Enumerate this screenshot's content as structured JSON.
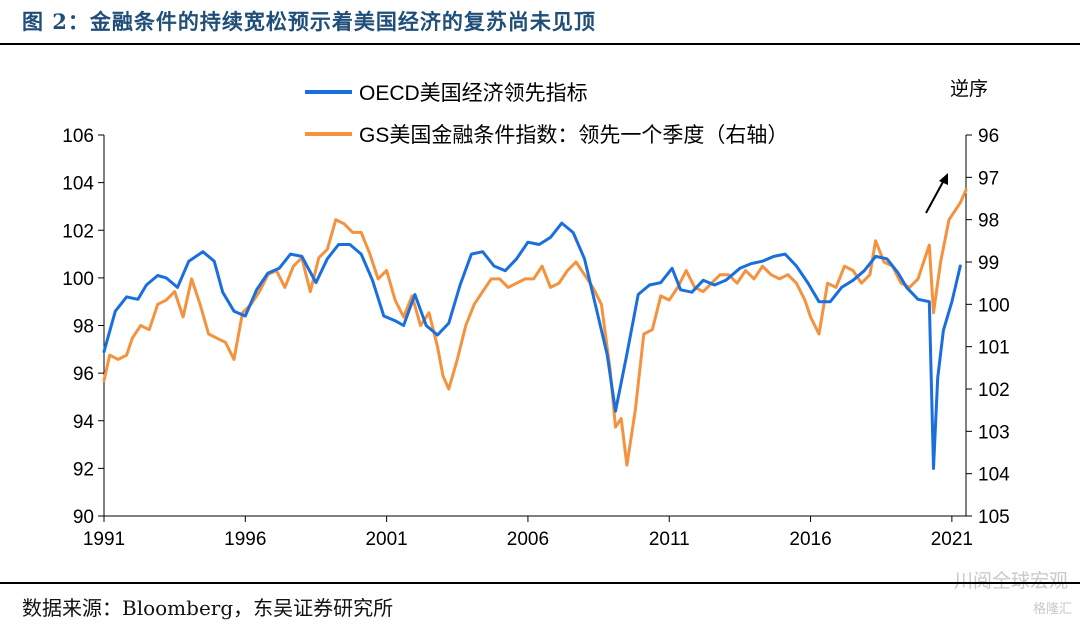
{
  "header": {
    "title": "图 2：金融条件的持续宽松预示着美国经济的复苏尚未见顶"
  },
  "footer": {
    "source": "数据来源：Bloomberg，东吴证券研究所"
  },
  "watermark": {
    "main": "川阅全球宏观",
    "sub": "格隆汇"
  },
  "colors": {
    "oecd": "#1a6fdf",
    "gs": "#f5923e",
    "title": "#1f4e79",
    "axis": "#000000"
  },
  "chart_data": {
    "type": "line",
    "title": "",
    "xlabel": "",
    "x_ticks": [
      "1991",
      "1996",
      "2001",
      "2006",
      "2011",
      "2016",
      "2021"
    ],
    "xlim": [
      1991.0,
      2021.5
    ],
    "left_axis": {
      "ylim": [
        90,
        106
      ],
      "ticks": [
        "90",
        "92",
        "94",
        "96",
        "98",
        "100",
        "102",
        "104",
        "106"
      ]
    },
    "right_axis": {
      "label": "逆序",
      "inverted": true,
      "ylim": [
        96,
        105
      ],
      "ticks": [
        "96",
        "97",
        "98",
        "99",
        "100",
        "101",
        "102",
        "103",
        "104",
        "105"
      ]
    },
    "legend": {
      "placement": "top-center"
    },
    "annotation": "arrow pointing up-right near the end of the series",
    "series": [
      {
        "name": "OECD美国经济领先指标",
        "axis": "left",
        "color": "#1a6fdf",
        "x": [
          1991.0,
          1991.4,
          1991.8,
          1992.2,
          1992.5,
          1992.9,
          1993.2,
          1993.6,
          1994.0,
          1994.5,
          1994.9,
          1995.2,
          1995.6,
          1996.0,
          1996.4,
          1996.8,
          1997.2,
          1997.6,
          1998.0,
          1998.5,
          1998.9,
          1999.3,
          1999.7,
          2000.1,
          2000.5,
          2000.9,
          2001.3,
          2001.6,
          2002.0,
          2002.4,
          2002.8,
          2003.2,
          2003.6,
          2004.0,
          2004.4,
          2004.8,
          2005.2,
          2005.6,
          2006.0,
          2006.4,
          2006.8,
          2007.2,
          2007.6,
          2008.0,
          2008.4,
          2008.8,
          2009.1,
          2009.5,
          2009.9,
          2010.3,
          2010.7,
          2011.1,
          2011.4,
          2011.8,
          2012.2,
          2012.6,
          2013.0,
          2013.5,
          2013.9,
          2014.3,
          2014.7,
          2015.1,
          2015.5,
          2015.9,
          2016.3,
          2016.7,
          2017.1,
          2017.5,
          2017.9,
          2018.3,
          2018.7,
          2019.1,
          2019.4,
          2019.8,
          2020.2,
          2020.35,
          2020.5,
          2020.7,
          2021.0,
          2021.3
        ],
        "values": [
          96.9,
          98.6,
          99.2,
          99.1,
          99.7,
          100.1,
          100.0,
          99.6,
          100.7,
          101.1,
          100.7,
          99.4,
          98.6,
          98.4,
          99.5,
          100.2,
          100.4,
          101.0,
          100.9,
          99.8,
          100.8,
          101.4,
          101.4,
          101.0,
          99.9,
          98.4,
          98.2,
          98.0,
          99.3,
          98.0,
          97.6,
          98.1,
          99.7,
          101.0,
          101.1,
          100.5,
          100.3,
          100.8,
          101.5,
          101.4,
          101.7,
          102.3,
          101.9,
          100.8,
          98.8,
          96.8,
          94.4,
          96.8,
          99.3,
          99.7,
          99.8,
          100.4,
          99.5,
          99.4,
          99.9,
          99.7,
          99.9,
          100.4,
          100.6,
          100.7,
          100.9,
          101.0,
          100.5,
          99.8,
          99.0,
          99.0,
          99.6,
          99.9,
          100.3,
          100.9,
          100.8,
          100.2,
          99.6,
          99.1,
          99.0,
          92.0,
          95.8,
          97.8,
          99.0,
          100.5
        ]
      },
      {
        "name": "GS美国金融条件指数：领先一个季度（右轴）",
        "axis": "right",
        "color": "#f5923e",
        "x": [
          1991.0,
          1991.2,
          1991.5,
          1991.8,
          1992.0,
          1992.3,
          1992.6,
          1992.9,
          1993.2,
          1993.5,
          1993.8,
          1994.1,
          1994.4,
          1994.7,
          1995.0,
          1995.3,
          1995.6,
          1995.9,
          1996.2,
          1996.5,
          1996.8,
          1997.1,
          1997.4,
          1997.7,
          1998.0,
          1998.3,
          1998.6,
          1998.9,
          1999.2,
          1999.5,
          1999.8,
          2000.1,
          2000.4,
          2000.7,
          2001.0,
          2001.3,
          2001.6,
          2001.9,
          2002.2,
          2002.5,
          2002.8,
          2003.0,
          2003.2,
          2003.5,
          2003.8,
          2004.1,
          2004.4,
          2004.7,
          2005.0,
          2005.3,
          2005.6,
          2005.9,
          2006.2,
          2006.5,
          2006.8,
          2007.1,
          2007.4,
          2007.7,
          2008.0,
          2008.3,
          2008.6,
          2008.9,
          2009.1,
          2009.3,
          2009.5,
          2009.8,
          2010.1,
          2010.4,
          2010.7,
          2011.0,
          2011.3,
          2011.6,
          2011.9,
          2012.2,
          2012.5,
          2012.8,
          2013.1,
          2013.4,
          2013.7,
          2014.0,
          2014.3,
          2014.6,
          2014.9,
          2015.2,
          2015.5,
          2015.8,
          2016.0,
          2016.3,
          2016.6,
          2016.9,
          2017.2,
          2017.5,
          2017.8,
          2018.1,
          2018.3,
          2018.6,
          2018.9,
          2019.2,
          2019.5,
          2019.8,
          2020.0,
          2020.2,
          2020.35,
          2020.6,
          2020.9,
          2021.1,
          2021.3,
          2021.5
        ],
        "values": [
          101.8,
          101.2,
          101.3,
          101.2,
          100.8,
          100.5,
          100.6,
          100.0,
          99.9,
          99.7,
          100.3,
          99.4,
          100.0,
          100.7,
          100.8,
          100.9,
          101.3,
          100.2,
          100.0,
          99.7,
          99.3,
          99.2,
          99.6,
          99.1,
          98.9,
          99.7,
          98.9,
          98.7,
          98.0,
          98.1,
          98.3,
          98.3,
          98.8,
          99.4,
          99.2,
          99.9,
          100.3,
          99.8,
          100.5,
          100.2,
          101.0,
          101.7,
          102.0,
          101.3,
          100.5,
          100.0,
          99.7,
          99.4,
          99.4,
          99.6,
          99.5,
          99.4,
          99.4,
          99.1,
          99.6,
          99.5,
          99.2,
          99.0,
          99.3,
          99.6,
          100.0,
          101.5,
          102.9,
          102.7,
          103.8,
          102.5,
          100.7,
          100.6,
          99.8,
          99.9,
          99.6,
          99.2,
          99.6,
          99.7,
          99.5,
          99.3,
          99.3,
          99.5,
          99.2,
          99.4,
          99.1,
          99.3,
          99.4,
          99.3,
          99.5,
          99.9,
          100.3,
          100.7,
          99.5,
          99.6,
          99.1,
          99.2,
          99.5,
          99.3,
          98.5,
          99.0,
          99.1,
          99.5,
          99.6,
          99.4,
          99.0,
          98.6,
          100.2,
          99.0,
          98.0,
          97.8,
          97.6,
          97.3
        ]
      }
    ]
  }
}
